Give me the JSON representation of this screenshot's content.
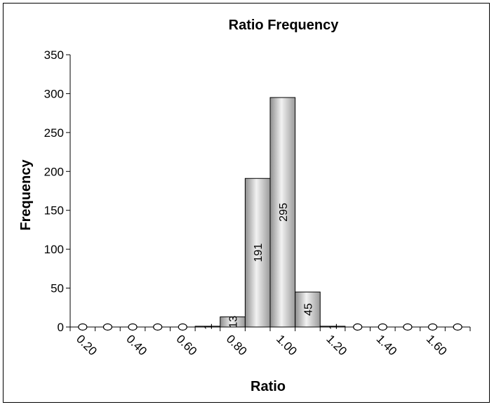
{
  "chart_data": {
    "type": "bar",
    "title": "Ratio Frequency",
    "xlabel": "Ratio",
    "ylabel": "Frequency",
    "ylim": [
      0,
      350
    ],
    "yticks": [
      "0",
      "50",
      "100",
      "150",
      "200",
      "250",
      "300",
      "350"
    ],
    "categories": [
      "0.20",
      "0.30",
      "0.40",
      "0.50",
      "0.60",
      "0.70",
      "0.80",
      "0.90",
      "1.00",
      "1.10",
      "1.20",
      "1.30",
      "1.40",
      "1.50",
      "1.60",
      "1.70"
    ],
    "xtick_labels": [
      "0.20",
      "0.40",
      "0.60",
      "0.80",
      "1.00",
      "1.20",
      "1.40",
      "1.60"
    ],
    "values": [
      0,
      0,
      0,
      0,
      0,
      1,
      13,
      191,
      295,
      45,
      1,
      0,
      0,
      0,
      0,
      0
    ],
    "data_labels": [
      "0",
      "0",
      "0",
      "0",
      "0",
      "1",
      "13",
      "191",
      "295",
      "45",
      "1",
      "0",
      "0",
      "0",
      "0",
      "0"
    ],
    "grid": false,
    "legend": "none",
    "bar_color": "#c8c8c8"
  }
}
